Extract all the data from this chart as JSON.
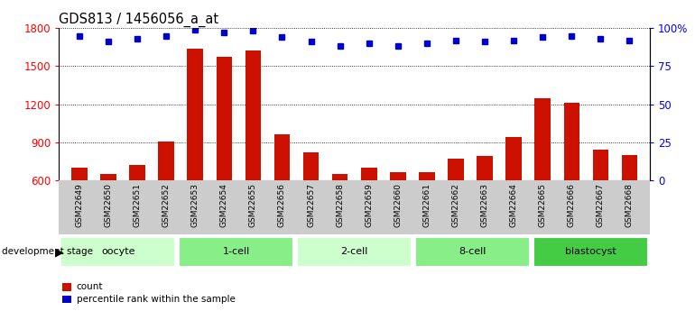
{
  "title": "GDS813 / 1456056_a_at",
  "samples": [
    "GSM22649",
    "GSM22650",
    "GSM22651",
    "GSM22652",
    "GSM22653",
    "GSM22654",
    "GSM22655",
    "GSM22656",
    "GSM22657",
    "GSM22658",
    "GSM22659",
    "GSM22660",
    "GSM22661",
    "GSM22662",
    "GSM22663",
    "GSM22664",
    "GSM22665",
    "GSM22666",
    "GSM22667",
    "GSM22668"
  ],
  "counts": [
    700,
    648,
    720,
    905,
    1640,
    1570,
    1625,
    960,
    820,
    648,
    700,
    665,
    668,
    770,
    790,
    940,
    1250,
    1210,
    840,
    800
  ],
  "percentiles": [
    95,
    91,
    93,
    95,
    99,
    97,
    98,
    94,
    91,
    88,
    90,
    88,
    90,
    92,
    91,
    92,
    94,
    95,
    93,
    92
  ],
  "groups": [
    {
      "label": "oocyte",
      "start": 0,
      "end": 4,
      "color": "#ccffcc"
    },
    {
      "label": "1-cell",
      "start": 4,
      "end": 8,
      "color": "#88ee88"
    },
    {
      "label": "2-cell",
      "start": 8,
      "end": 12,
      "color": "#ccffcc"
    },
    {
      "label": "8-cell",
      "start": 12,
      "end": 16,
      "color": "#88ee88"
    },
    {
      "label": "blastocyst",
      "start": 16,
      "end": 20,
      "color": "#44cc44"
    }
  ],
  "bar_color": "#cc1100",
  "dot_color": "#0000cc",
  "ylim_left": [
    600,
    1800
  ],
  "ylim_right": [
    0,
    100
  ],
  "yticks_left": [
    600,
    900,
    1200,
    1500,
    1800
  ],
  "yticks_right": [
    0,
    25,
    50,
    75,
    100
  ],
  "yticklabels_right": [
    "0",
    "25",
    "50",
    "75",
    "100%"
  ],
  "bar_bottom": 600,
  "gray_bg": "#cccccc",
  "group_colors_light": "#ccffcc",
  "group_colors_mid": "#88ee88",
  "group_colors_dark": "#44cc44"
}
